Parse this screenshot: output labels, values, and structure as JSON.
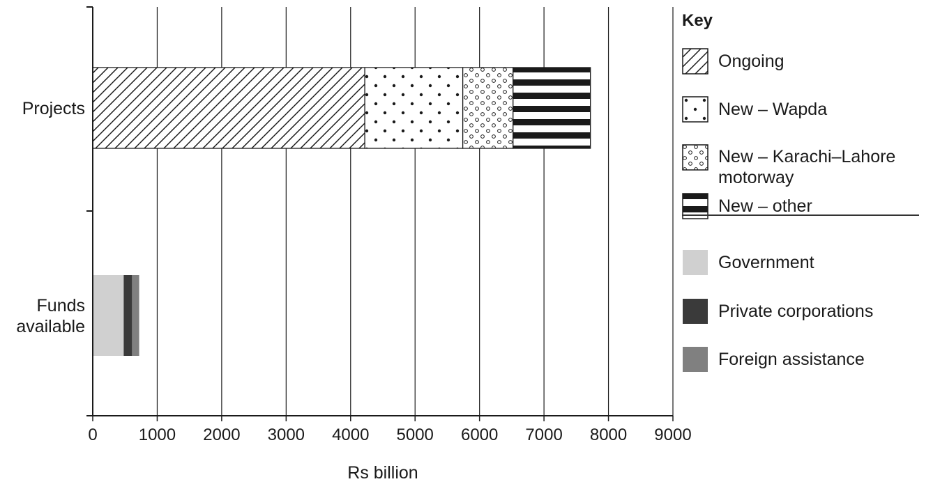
{
  "chart_data": {
    "type": "bar",
    "orientation": "horizontal",
    "stacked": true,
    "xlabel": "Rs billion",
    "ylabel": "",
    "xlim": [
      0,
      9000
    ],
    "xticks": [
      0,
      1000,
      2000,
      3000,
      4000,
      5000,
      6000,
      7000,
      8000,
      9000
    ],
    "grid": true,
    "legend_title": "Key",
    "legend_position": "right",
    "categories": [
      "Projects",
      "Funds available"
    ],
    "category_lines": [
      [
        "Projects"
      ],
      [
        "Funds",
        "available"
      ]
    ],
    "series_groups": [
      {
        "category": "Projects",
        "series": [
          {
            "name": "Ongoing",
            "value": 4220,
            "pattern": "diagonal-hatch"
          },
          {
            "name": "New – Wapda",
            "value": 1520,
            "pattern": "large-dots"
          },
          {
            "name": "New – Karachi–Lahore motorway",
            "value": 780,
            "pattern": "small-circles"
          },
          {
            "name": "New – other",
            "value": 1200,
            "pattern": "horizontal-stripes"
          }
        ]
      },
      {
        "category": "Funds available",
        "series": [
          {
            "name": "Government",
            "value": 480,
            "color": "#d0d0d0"
          },
          {
            "name": "Private corporations",
            "value": 130,
            "color": "#3a3a3a"
          },
          {
            "name": "Foreign assistance",
            "value": 110,
            "color": "#808080"
          }
        ]
      }
    ]
  },
  "legend": {
    "title": "Key",
    "items": [
      {
        "lines": [
          "Ongoing"
        ],
        "pattern": "diagonal-hatch"
      },
      {
        "lines": [
          "New – Wapda"
        ],
        "pattern": "large-dots"
      },
      {
        "lines": [
          "New – Karachi–Lahore",
          "motorway"
        ],
        "pattern": "small-circles"
      },
      {
        "lines": [
          "New – other"
        ],
        "pattern": "horizontal-stripes"
      },
      {
        "lines": [
          "Government"
        ],
        "color": "#d0d0d0"
      },
      {
        "lines": [
          "Private corporations"
        ],
        "color": "#3a3a3a"
      },
      {
        "lines": [
          "Foreign assistance"
        ],
        "color": "#808080"
      }
    ]
  }
}
